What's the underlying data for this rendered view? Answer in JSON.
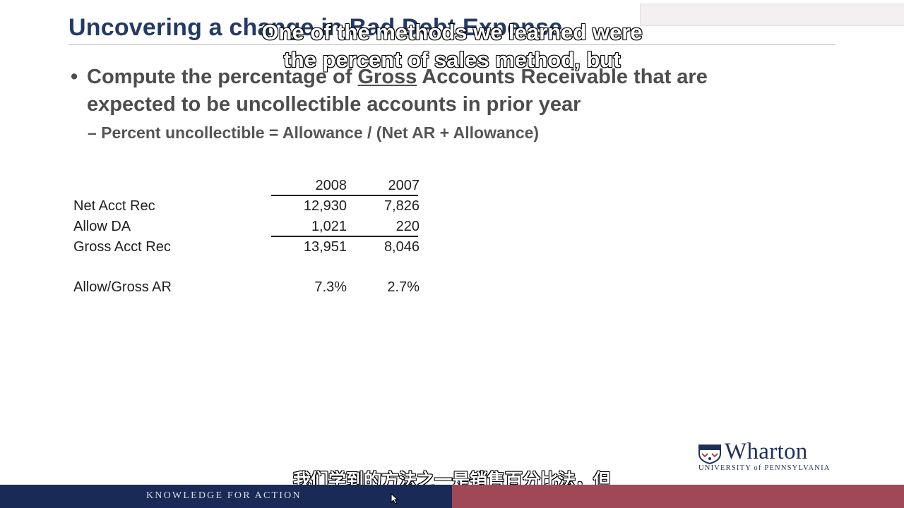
{
  "slide": {
    "title": "Uncovering a change in Bad Debt Expense",
    "bullet": {
      "before": "Compute the percentage of ",
      "underlined": "Gross",
      "after": " Accounts Receivable that are expected to be uncollectible accounts in prior year"
    },
    "sub_bullet": "– Percent uncollectible = Allowance / (Net AR + Allowance)"
  },
  "table": {
    "columns": [
      "2008",
      "2007"
    ],
    "rows": [
      {
        "label": "Net Acct Rec",
        "v2008": "12,930",
        "v2007": "7,826"
      },
      {
        "label": "Allow DA",
        "v2008": "1,021",
        "v2007": "220"
      },
      {
        "label": "Gross Acct Rec",
        "v2008": "13,951",
        "v2007": "8,046"
      },
      {
        "label": "Allow/Gross AR",
        "v2008": "7.3%",
        "v2007": "2.7%"
      }
    ]
  },
  "captions": {
    "en_line1": "One of the methods we learned were",
    "en_line2": "the percent of sales method, but",
    "zh": "我们学到的方法之一是销售百分比法，但"
  },
  "logo": {
    "name": "Wharton",
    "sub": "UNIVERSITY of PENNSYLVANIA"
  },
  "footer": {
    "tagline": "KNOWLEDGE FOR ACTION"
  },
  "colors": {
    "title": "#243a66",
    "footer_left": "#1a2a56",
    "footer_right": "#a04858"
  }
}
